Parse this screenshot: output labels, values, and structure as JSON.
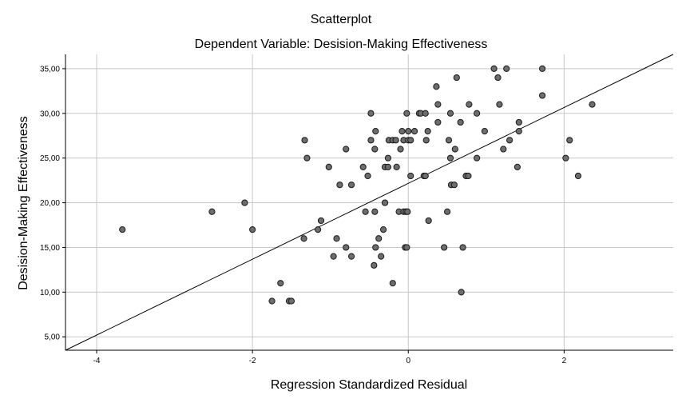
{
  "chart_data": {
    "type": "scatter",
    "title": "Scatterplot",
    "subtitle": "Dependent Variable: Desision-Making Effectiveness",
    "xlabel": "Regression Standardized Residual",
    "ylabel": "Desision-Making Effectiveness",
    "xlim": [
      -4.4,
      3.4
    ],
    "ylim": [
      3.5,
      36.6
    ],
    "x_ticks": [
      -4,
      -2,
      0,
      2
    ],
    "x_tick_labels": [
      "-4",
      "-2",
      "0",
      "2"
    ],
    "y_ticks": [
      5,
      10,
      15,
      20,
      25,
      30,
      35
    ],
    "y_tick_labels": [
      "5,00",
      "10,00",
      "15,00",
      "20,00",
      "25,00",
      "30,00",
      "35,00"
    ],
    "grid": "vertical and horizontal at ticks",
    "fit_line": {
      "x": [
        -4.4,
        3.4
      ],
      "y": [
        3.5,
        36.6
      ]
    },
    "colors": {
      "point_fill": "#6d6d6d",
      "point_stroke": "#1a1a1a",
      "grid": "#c8c8c8",
      "line": "#000000"
    },
    "points": [
      [
        -3.67,
        17
      ],
      [
        -2.52,
        19
      ],
      [
        -2.1,
        20
      ],
      [
        -2.0,
        17
      ],
      [
        -1.75,
        9
      ],
      [
        -1.64,
        11
      ],
      [
        -1.53,
        9
      ],
      [
        -1.5,
        9
      ],
      [
        -1.33,
        27
      ],
      [
        -1.3,
        25
      ],
      [
        -1.34,
        16
      ],
      [
        -1.16,
        17
      ],
      [
        -1.12,
        18
      ],
      [
        -1.02,
        24
      ],
      [
        -0.96,
        14
      ],
      [
        -0.92,
        16
      ],
      [
        -0.88,
        22
      ],
      [
        -0.8,
        26
      ],
      [
        -0.8,
        15
      ],
      [
        -0.73,
        22
      ],
      [
        -0.73,
        14
      ],
      [
        -0.58,
        24
      ],
      [
        -0.55,
        19
      ],
      [
        -0.52,
        23
      ],
      [
        -0.48,
        27
      ],
      [
        -0.48,
        30
      ],
      [
        -0.43,
        26
      ],
      [
        -0.42,
        28
      ],
      [
        -0.43,
        19
      ],
      [
        -0.44,
        13
      ],
      [
        -0.42,
        15
      ],
      [
        -0.38,
        16
      ],
      [
        -0.35,
        14
      ],
      [
        -0.32,
        17
      ],
      [
        -0.3,
        20
      ],
      [
        -0.3,
        24
      ],
      [
        -0.26,
        24
      ],
      [
        -0.26,
        25
      ],
      [
        -0.25,
        27
      ],
      [
        -0.2,
        27
      ],
      [
        -0.16,
        27
      ],
      [
        -0.2,
        11
      ],
      [
        -0.15,
        24
      ],
      [
        -0.12,
        19
      ],
      [
        -0.1,
        26
      ],
      [
        -0.08,
        28
      ],
      [
        -0.06,
        19
      ],
      [
        -0.06,
        27
      ],
      [
        -0.04,
        15
      ],
      [
        -0.03,
        19
      ],
      [
        -0.02,
        30
      ],
      [
        -0.02,
        15
      ],
      [
        -0.01,
        19
      ],
      [
        0.0,
        27
      ],
      [
        0.0,
        28
      ],
      [
        0.03,
        23
      ],
      [
        0.03,
        27
      ],
      [
        0.08,
        28
      ],
      [
        0.14,
        30
      ],
      [
        0.16,
        30
      ],
      [
        0.2,
        23
      ],
      [
        0.22,
        23
      ],
      [
        0.22,
        30
      ],
      [
        0.23,
        27
      ],
      [
        0.25,
        28
      ],
      [
        0.26,
        18
      ],
      [
        0.36,
        33
      ],
      [
        0.38,
        31
      ],
      [
        0.38,
        29
      ],
      [
        0.46,
        15
      ],
      [
        0.5,
        19
      ],
      [
        0.52,
        27
      ],
      [
        0.54,
        30
      ],
      [
        0.54,
        25
      ],
      [
        0.55,
        22
      ],
      [
        0.59,
        22
      ],
      [
        0.6,
        26
      ],
      [
        0.62,
        34
      ],
      [
        0.67,
        29
      ],
      [
        0.68,
        10
      ],
      [
        0.7,
        15
      ],
      [
        0.74,
        23
      ],
      [
        0.77,
        23
      ],
      [
        0.78,
        31
      ],
      [
        0.88,
        30
      ],
      [
        0.88,
        25
      ],
      [
        0.98,
        28
      ],
      [
        1.1,
        35
      ],
      [
        1.15,
        34
      ],
      [
        1.17,
        31
      ],
      [
        1.22,
        26
      ],
      [
        1.26,
        35
      ],
      [
        1.3,
        27
      ],
      [
        1.4,
        24
      ],
      [
        1.42,
        28
      ],
      [
        1.42,
        29
      ],
      [
        1.72,
        35
      ],
      [
        1.72,
        32
      ],
      [
        2.02,
        25
      ],
      [
        2.07,
        27
      ],
      [
        2.18,
        23
      ],
      [
        2.36,
        31
      ]
    ]
  }
}
